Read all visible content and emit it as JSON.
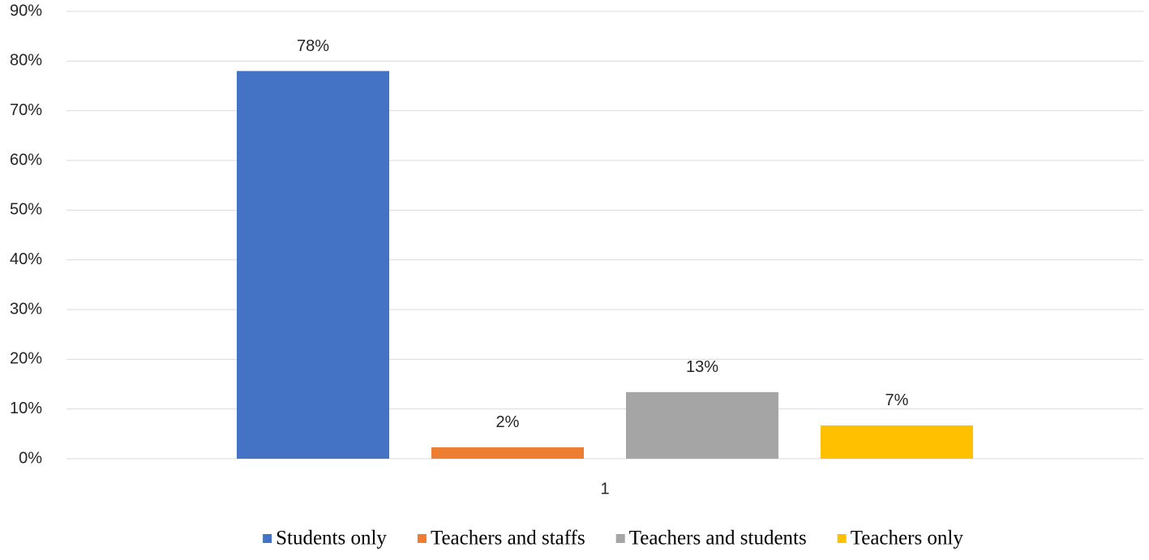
{
  "chart_data": {
    "type": "bar",
    "categories": [
      "1"
    ],
    "series": [
      {
        "name": "Students only",
        "color": "#4472c4",
        "values": [
          78
        ],
        "value_labels": [
          "78%"
        ]
      },
      {
        "name": "Teachers and staffs",
        "color": "#ed7d31",
        "values": [
          2.3
        ],
        "value_labels": [
          "2%"
        ]
      },
      {
        "name": "Teachers and students",
        "color": "#a5a5a5",
        "values": [
          13.4
        ],
        "value_labels": [
          "13%"
        ]
      },
      {
        "name": "Teachers only",
        "color": "#ffc000",
        "values": [
          6.7
        ],
        "value_labels": [
          "7%"
        ]
      }
    ],
    "ylim": [
      0,
      90
    ],
    "yticks": [
      {
        "value": 0,
        "label": "0%"
      },
      {
        "value": 10,
        "label": "10%"
      },
      {
        "value": 20,
        "label": "20%"
      },
      {
        "value": 30,
        "label": "30%"
      },
      {
        "value": 40,
        "label": "40%"
      },
      {
        "value": 50,
        "label": "50%"
      },
      {
        "value": 60,
        "label": "60%"
      },
      {
        "value": 70,
        "label": "70%"
      },
      {
        "value": 80,
        "label": "80%"
      },
      {
        "value": 90,
        "label": "90%"
      }
    ],
    "grid": true,
    "legend": "bottom"
  }
}
